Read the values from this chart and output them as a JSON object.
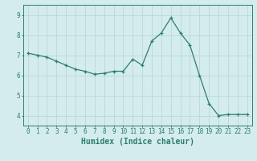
{
  "x": [
    0,
    1,
    2,
    3,
    4,
    5,
    6,
    7,
    8,
    9,
    10,
    11,
    12,
    13,
    14,
    15,
    16,
    17,
    18,
    19,
    20,
    21,
    22,
    23
  ],
  "y": [
    7.1,
    7.0,
    6.9,
    6.7,
    6.5,
    6.3,
    6.2,
    6.05,
    6.1,
    6.2,
    6.2,
    6.8,
    6.5,
    7.7,
    8.1,
    8.85,
    8.1,
    7.5,
    6.0,
    4.6,
    4.0,
    4.05,
    4.05,
    4.05
  ],
  "line_color": "#2e7d70",
  "bg_color": "#d4ecec",
  "grid_color": "#b8d8d8",
  "xlabel": "Humidex (Indice chaleur)",
  "xlim": [
    -0.5,
    23.5
  ],
  "ylim": [
    3.5,
    9.5
  ],
  "yticks": [
    4,
    5,
    6,
    7,
    8,
    9
  ],
  "xticks": [
    0,
    1,
    2,
    3,
    4,
    5,
    6,
    7,
    8,
    9,
    10,
    11,
    12,
    13,
    14,
    15,
    16,
    17,
    18,
    19,
    20,
    21,
    22,
    23
  ],
  "tick_label_fontsize": 5.5,
  "xlabel_fontsize": 7.0,
  "marker": "+"
}
